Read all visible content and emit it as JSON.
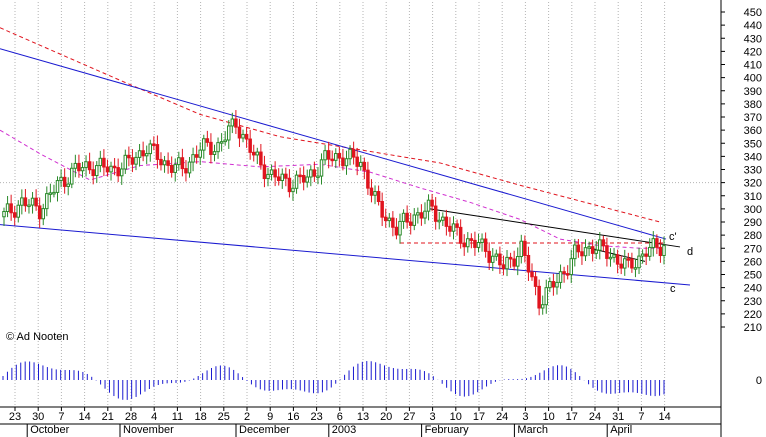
{
  "copyright": "© Ad Nooten",
  "colors": {
    "up_candle": "#2a8a2a",
    "down_candle": "#e0141e",
    "trend_line": "#1a1ad0",
    "ma_long": "#e0141e",
    "ma_short": "#d030d0",
    "support_dash": "#e0141e",
    "volume": "#1a1ad0",
    "grid": "#b4b4b4"
  },
  "chart_data": {
    "type": "candlestick",
    "y_axis": {
      "side": "right",
      "ticks": [
        210,
        220,
        230,
        240,
        250,
        260,
        270,
        280,
        290,
        300,
        310,
        320,
        330,
        340,
        350,
        360,
        370,
        380,
        390,
        400,
        410,
        420,
        430,
        440,
        450
      ],
      "range": [
        200,
        455
      ]
    },
    "x_axis": {
      "day_ticks": [
        "23",
        "30",
        "7",
        "14",
        "21",
        "28",
        "4",
        "11",
        "18",
        "25",
        "2",
        "9",
        "16",
        "23",
        "6",
        "13",
        "20",
        "27",
        "3",
        "10",
        "17",
        "24",
        "3",
        "10",
        "17",
        "24",
        "31",
        "7",
        "14"
      ],
      "months": [
        {
          "label": "October",
          "tick": 1
        },
        {
          "label": "November",
          "tick": 5
        },
        {
          "label": "December",
          "tick": 10
        },
        {
          "label": "2003",
          "tick": 14
        },
        {
          "label": "February",
          "tick": 18
        },
        {
          "label": "March",
          "tick": 22
        },
        {
          "label": "April",
          "tick": 26
        }
      ]
    },
    "annotations": [
      "c'",
      "d",
      "c"
    ],
    "volume_panel": {
      "zero_label": "0"
    },
    "weekly_closes": [
      295,
      305,
      300,
      318,
      330,
      333,
      330,
      335,
      347,
      335,
      330,
      346,
      348,
      366,
      340,
      325,
      320,
      323,
      338,
      340,
      335,
      300,
      285,
      295,
      300,
      285,
      275,
      270,
      255,
      270,
      230,
      245,
      265,
      272,
      265,
      255,
      268,
      272
    ]
  }
}
